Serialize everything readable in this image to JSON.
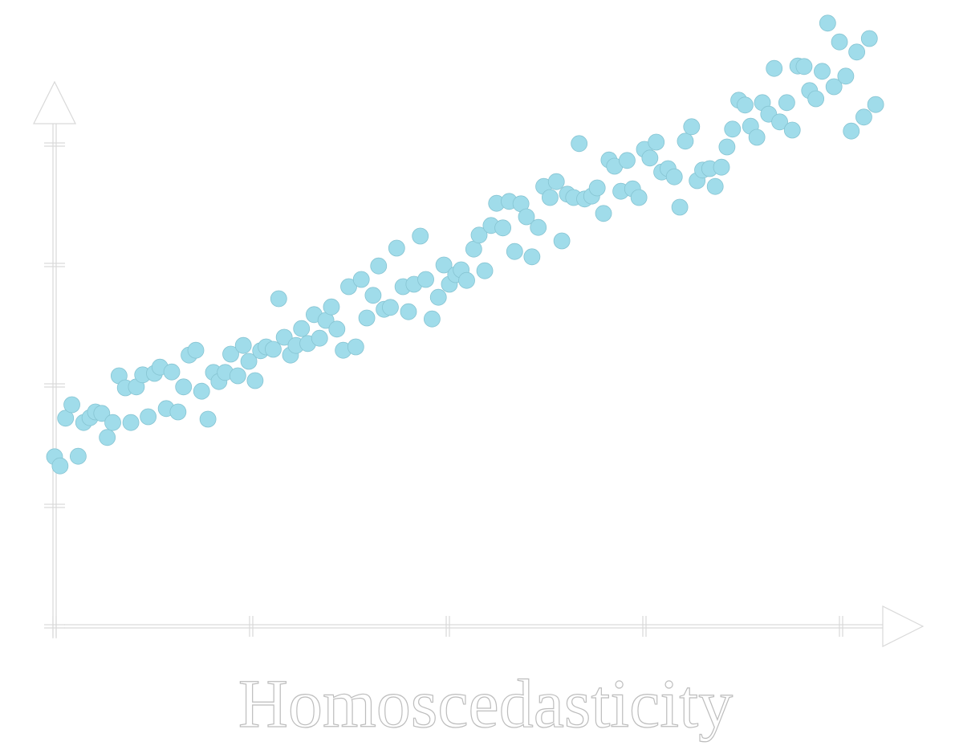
{
  "chart_data": {
    "type": "scatter",
    "title": "Homoscedasticity",
    "color": "#a0dcea",
    "xlim": [
      0,
      110
    ],
    "ylim": [
      0,
      113
    ],
    "xticks": [
      0,
      25,
      50,
      75,
      100
    ],
    "yticks": [
      0,
      25,
      50,
      75,
      100
    ],
    "x": [
      0,
      0.7,
      1.4,
      2.2,
      3,
      3.7,
      4.5,
      5.2,
      6,
      6.7,
      7.4,
      8.2,
      9,
      9.7,
      10.4,
      11.2,
      11.9,
      12.7,
      13.4,
      14.2,
      14.9,
      15.7,
      16.4,
      17.1,
      17.96,
      18.7,
      19.5,
      20.2,
      20.9,
      21.7,
      22.4,
      23.3,
      24,
      24.7,
      25.5,
      26.2,
      26.9,
      27.8,
      28.5,
      29.2,
      30,
      30.7,
      31.4,
      32.2,
      33,
      33.7,
      34.5,
      35.2,
      35.9,
      36.7,
      37.4,
      38.3,
      39,
      39.7,
      40.5,
      41.2,
      41.9,
      42.7,
      43.5,
      44.3,
      45,
      45.7,
      46.5,
      47.2,
      48,
      48.8,
      49.5,
      50.2,
      51,
      51.7,
      52.4,
      53.3,
      53.98,
      54.7,
      55.5,
      56.2,
      57,
      57.8,
      58.5,
      59.3,
      60,
      60.7,
      61.5,
      62.2,
      63,
      63.8,
      64.5,
      65.2,
      66,
      66.7,
      67.4,
      68.3,
      69,
      69.8,
      70.5,
      71.2,
      72,
      72.8,
      73.5,
      74.3,
      75,
      75.7,
      76.5,
      77.2,
      78,
      78.8,
      79.5,
      80.2,
      81,
      81.7,
      82.4,
      83.3,
      84,
      84.8,
      85.5,
      86.2,
      87,
      87.8,
      88.5,
      89.3,
      90,
      90.8,
      91.5,
      92.2,
      93.1,
      93.8,
      94.5,
      95.3,
      96,
      96.8,
      97.6,
      98.3,
      99.1,
      99.8,
      100.6,
      101.3,
      102,
      102.9,
      103.6,
      104.4
    ],
    "values": [
      35.2,
      33.3,
      43.2,
      46,
      35.3,
      42.3,
      43.3,
      44.5,
      44.2,
      39.2,
      42.3,
      52,
      49.5,
      42.3,
      49.7,
      52.2,
      43.5,
      52.5,
      53.8,
      45.2,
      52.8,
      44.5,
      49.7,
      56.3,
      57.3,
      48.8,
      43,
      52.7,
      50.8,
      52.7,
      56.5,
      52,
      58.3,
      55,
      51,
      57.2,
      58,
      57.5,
      68,
      60,
      56.3,
      58.3,
      61.8,
      58.7,
      64.7,
      59.8,
      63.5,
      66.3,
      61.7,
      57.3,
      70.5,
      58,
      72,
      64,
      68.7,
      74.8,
      65.8,
      66.2,
      78.5,
      70.5,
      65.3,
      71,
      81,
      72,
      63.8,
      68.3,
      75,
      71,
      73,
      74,
      71.8,
      78.3,
      81.2,
      73.8,
      83.2,
      87.8,
      82.7,
      88.2,
      77.8,
      87.7,
      85,
      76.7,
      82.8,
      91.3,
      89,
      92.3,
      80,
      89.7,
      89,
      100.2,
      88.7,
      89.3,
      91,
      85.7,
      96.8,
      95.5,
      90.3,
      96.7,
      90.8,
      89,
      99,
      97.2,
      100.5,
      94.3,
      95,
      93.3,
      87,
      100.7,
      103.7,
      92.5,
      94.7,
      95,
      91.3,
      95.3,
      99.5,
      103.2,
      109.2,
      108.2,
      103.8,
      101.5,
      108.7,
      106.3,
      115.8,
      104.7,
      108.7,
      103,
      116.3,
      116.2,
      111.2,
      109.5,
      115.2,
      125.2,
      112,
      121.3,
      114.2,
      102.8,
      119.2,
      105.7,
      122,
      108.3
    ]
  }
}
